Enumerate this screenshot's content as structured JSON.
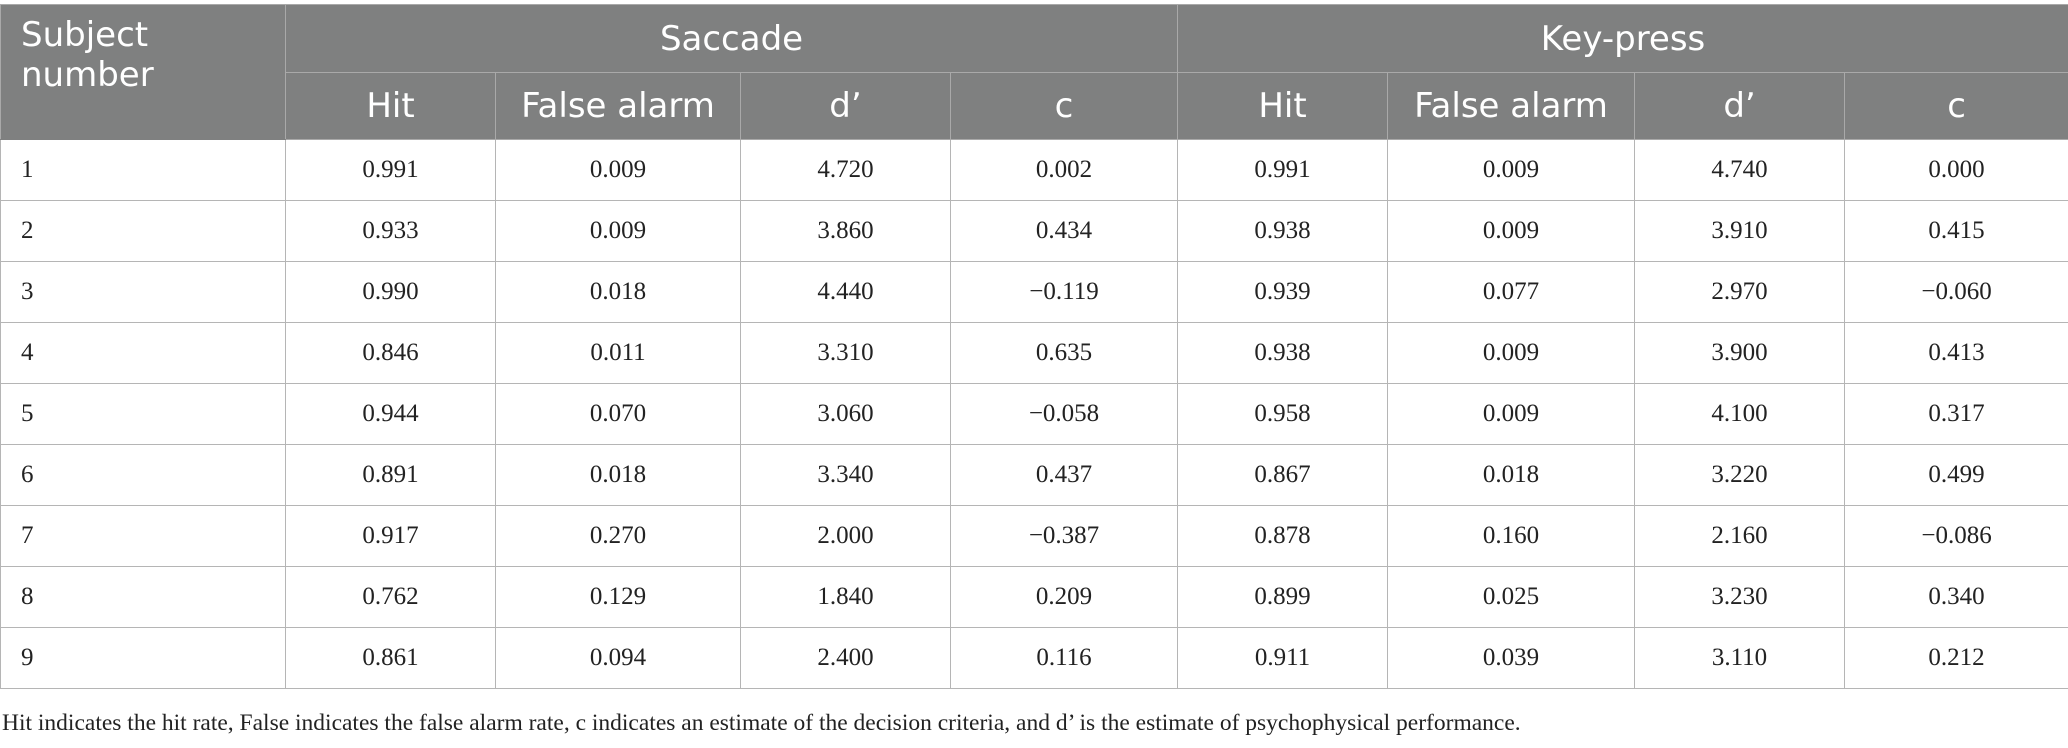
{
  "table": {
    "subject_header": "Subject number",
    "groups": [
      "Saccade",
      "Key-press"
    ],
    "columns": [
      "Hit",
      "False alarm",
      "d’",
      "c",
      "Hit",
      "False alarm",
      "d’",
      "c"
    ],
    "rows": [
      [
        "1",
        "0.991",
        "0.009",
        "4.720",
        "0.002",
        "0.991",
        "0.009",
        "4.740",
        "0.000"
      ],
      [
        "2",
        "0.933",
        "0.009",
        "3.860",
        "0.434",
        "0.938",
        "0.009",
        "3.910",
        "0.415"
      ],
      [
        "3",
        "0.990",
        "0.018",
        "4.440",
        "−0.119",
        "0.939",
        "0.077",
        "2.970",
        "−0.060"
      ],
      [
        "4",
        "0.846",
        "0.011",
        "3.310",
        "0.635",
        "0.938",
        "0.009",
        "3.900",
        "0.413"
      ],
      [
        "5",
        "0.944",
        "0.070",
        "3.060",
        "−0.058",
        "0.958",
        "0.009",
        "4.100",
        "0.317"
      ],
      [
        "6",
        "0.891",
        "0.018",
        "3.340",
        "0.437",
        "0.867",
        "0.018",
        "3.220",
        "0.499"
      ],
      [
        "7",
        "0.917",
        "0.270",
        "2.000",
        "−0.387",
        "0.878",
        "0.160",
        "2.160",
        "−0.086"
      ],
      [
        "8",
        "0.762",
        "0.129",
        "1.840",
        "0.209",
        "0.899",
        "0.025",
        "3.230",
        "0.340"
      ],
      [
        "9",
        "0.861",
        "0.094",
        "2.400",
        "0.116",
        "0.911",
        "0.039",
        "3.110",
        "0.212"
      ]
    ]
  },
  "footnote": "Hit indicates the hit rate, False indicates the false alarm rate, c indicates an estimate of the decision criteria, and d’ is the estimate of psychophysical performance."
}
